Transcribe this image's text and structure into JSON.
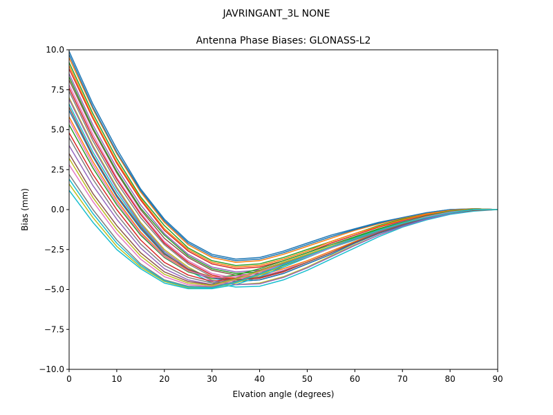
{
  "figure": {
    "suptitle": "JAVRINGANT_3L   NONE"
  },
  "chart_data": {
    "type": "line",
    "title": "Antenna Phase Biases: GLONASS-L2",
    "xlabel": "Elvation angle (degrees)",
    "ylabel": "Bias (mm)",
    "xlim": [
      0,
      90
    ],
    "ylim": [
      -10,
      10
    ],
    "xticks": [
      0,
      10,
      20,
      30,
      40,
      50,
      60,
      70,
      80,
      90
    ],
    "xtick_labels": [
      "0",
      "10",
      "20",
      "30",
      "40",
      "50",
      "60",
      "70",
      "80",
      "90"
    ],
    "yticks": [
      -10,
      -7.5,
      -5,
      -2.5,
      0,
      2.5,
      5,
      7.5,
      10
    ],
    "ytick_labels": [
      "−10.0",
      "−7.5",
      "−5.0",
      "−2.5",
      "0.0",
      "2.5",
      "5.0",
      "7.5",
      "10.0"
    ],
    "grid": false,
    "legend": "none",
    "colors": [
      "#1f77b4",
      "#ff7f0e",
      "#2ca02c",
      "#d62728",
      "#9467bd",
      "#8c564b",
      "#e377c2",
      "#7f7f7f",
      "#bcbd22",
      "#17becf"
    ],
    "x": [
      0,
      5,
      10,
      15,
      20,
      25,
      30,
      35,
      40,
      45,
      50,
      55,
      60,
      65,
      70,
      75,
      80,
      85,
      90
    ],
    "series": [
      {
        "values": [
          9.9,
          6.6,
          3.8,
          1.3,
          -0.6,
          -2.0,
          -2.8,
          -3.1,
          -3.0,
          -2.6,
          -2.1,
          -1.6,
          -1.2,
          -0.8,
          -0.5,
          -0.2,
          0.0,
          0.05,
          0.0
        ]
      },
      {
        "values": [
          9.5,
          6.3,
          3.5,
          1.1,
          -0.8,
          -2.2,
          -3.0,
          -3.3,
          -3.2,
          -2.8,
          -2.3,
          -1.8,
          -1.3,
          -0.9,
          -0.55,
          -0.25,
          -0.05,
          0.05,
          0.0
        ]
      },
      {
        "values": [
          9.2,
          6.0,
          3.2,
          0.8,
          -1.0,
          -2.4,
          -3.2,
          -3.5,
          -3.4,
          -3.0,
          -2.5,
          -2.0,
          -1.5,
          -1.0,
          -0.6,
          -0.3,
          -0.05,
          0.05,
          0.0
        ]
      },
      {
        "values": [
          8.8,
          5.7,
          2.9,
          0.6,
          -1.3,
          -2.6,
          -3.4,
          -3.7,
          -3.6,
          -3.2,
          -2.7,
          -2.1,
          -1.6,
          -1.1,
          -0.7,
          -0.35,
          -0.1,
          0.05,
          0.0
        ]
      },
      {
        "values": [
          8.5,
          5.3,
          2.6,
          0.3,
          -1.5,
          -2.8,
          -3.6,
          -3.9,
          -3.8,
          -3.4,
          -2.9,
          -2.3,
          -1.7,
          -1.2,
          -0.75,
          -0.4,
          -0.1,
          0.05,
          0.0
        ]
      },
      {
        "values": [
          8.1,
          5.0,
          2.3,
          0.0,
          -1.8,
          -3.0,
          -3.8,
          -4.1,
          -4.0,
          -3.6,
          -3.0,
          -2.4,
          -1.8,
          -1.3,
          -0.8,
          -0.45,
          -0.15,
          0.03,
          0.0
        ]
      },
      {
        "values": [
          7.8,
          4.7,
          2.0,
          -0.2,
          -2.0,
          -3.2,
          -4.0,
          -4.3,
          -4.2,
          -3.8,
          -3.2,
          -2.6,
          -2.0,
          -1.4,
          -0.9,
          -0.5,
          -0.2,
          0.0,
          0.0
        ]
      },
      {
        "values": [
          7.4,
          4.3,
          1.7,
          -0.5,
          -2.2,
          -3.4,
          -4.2,
          -4.5,
          -4.4,
          -4.0,
          -3.4,
          -2.8,
          -2.1,
          -1.5,
          -1.0,
          -0.55,
          -0.2,
          0.0,
          0.0
        ]
      },
      {
        "values": [
          7.0,
          4.0,
          1.4,
          -0.8,
          -2.5,
          -3.6,
          -4.4,
          -4.7,
          -4.6,
          -4.2,
          -3.6,
          -2.9,
          -2.2,
          -1.6,
          -1.05,
          -0.6,
          -0.25,
          -0.05,
          0.0
        ]
      },
      {
        "values": [
          6.6,
          3.6,
          1.1,
          -1.0,
          -2.7,
          -3.8,
          -4.6,
          -4.85,
          -4.8,
          -4.4,
          -3.8,
          -3.1,
          -2.4,
          -1.7,
          -1.1,
          -0.65,
          -0.3,
          -0.1,
          0.0
        ]
      },
      {
        "values": [
          6.2,
          3.3,
          0.8,
          -1.2,
          -2.8,
          -3.7,
          -4.3,
          -4.5,
          -4.4,
          -4.0,
          -3.4,
          -2.8,
          -2.1,
          -1.5,
          -1.0,
          -0.55,
          -0.2,
          -0.05,
          0.0
        ]
      },
      {
        "values": [
          5.8,
          3.0,
          0.6,
          -1.4,
          -2.9,
          -3.8,
          -4.2,
          -4.3,
          -4.1,
          -3.7,
          -3.2,
          -2.6,
          -2.0,
          -1.4,
          -0.9,
          -0.5,
          -0.2,
          -0.05,
          0.0
        ]
      },
      {
        "values": [
          5.3,
          2.6,
          0.3,
          -1.6,
          -3.0,
          -3.9,
          -4.3,
          -4.1,
          -3.7,
          -3.2,
          -2.7,
          -2.2,
          -1.7,
          -1.2,
          -0.8,
          -0.45,
          -0.15,
          0.0,
          0.0
        ]
      },
      {
        "values": [
          4.8,
          2.2,
          0.0,
          -1.9,
          -3.3,
          -4.1,
          -4.5,
          -4.3,
          -3.8,
          -3.3,
          -2.8,
          -2.3,
          -1.8,
          -1.3,
          -0.85,
          -0.5,
          -0.2,
          0.0,
          0.0
        ]
      },
      {
        "values": [
          4.0,
          1.5,
          -0.6,
          -2.4,
          -3.7,
          -4.4,
          -4.7,
          -4.4,
          -3.9,
          -3.4,
          -2.9,
          -2.4,
          -1.9,
          -1.4,
          -0.9,
          -0.5,
          -0.2,
          -0.05,
          0.0
        ]
      },
      {
        "values": [
          3.5,
          1.0,
          -1.0,
          -2.7,
          -3.9,
          -4.5,
          -4.7,
          -4.3,
          -3.8,
          -3.3,
          -2.8,
          -2.3,
          -1.8,
          -1.3,
          -0.85,
          -0.5,
          -0.2,
          0.0,
          0.0
        ]
      },
      {
        "values": [
          2.8,
          0.5,
          -1.5,
          -3.1,
          -4.2,
          -4.7,
          -4.8,
          -4.4,
          -3.9,
          -3.3,
          -2.8,
          -2.3,
          -1.8,
          -1.3,
          -0.85,
          -0.5,
          -0.2,
          0.0,
          0.0
        ]
      },
      {
        "values": [
          2.2,
          0.0,
          -1.9,
          -3.4,
          -4.4,
          -4.8,
          -4.85,
          -4.5,
          -4.0,
          -3.4,
          -2.9,
          -2.3,
          -1.8,
          -1.3,
          -0.85,
          -0.5,
          -0.2,
          0.0,
          0.0
        ]
      },
      {
        "values": [
          1.6,
          -0.5,
          -2.3,
          -3.6,
          -4.5,
          -4.9,
          -4.9,
          -4.6,
          -4.1,
          -3.5,
          -2.9,
          -2.4,
          -1.8,
          -1.3,
          -0.85,
          -0.5,
          -0.2,
          0.0,
          0.0
        ]
      },
      {
        "values": [
          1.2,
          -0.8,
          -2.5,
          -3.7,
          -4.6,
          -4.95,
          -4.95,
          -4.7,
          -4.2,
          -3.6,
          -3.0,
          -2.4,
          -1.9,
          -1.35,
          -0.9,
          -0.5,
          -0.2,
          0.0,
          0.0
        ]
      },
      {
        "values": [
          9.7,
          6.4,
          3.6,
          1.2,
          -0.7,
          -2.1,
          -2.9,
          -3.2,
          -3.1,
          -2.7,
          -2.2,
          -1.7,
          -1.25,
          -0.85,
          -0.5,
          -0.2,
          0.0,
          0.05,
          0.0
        ]
      },
      {
        "values": [
          9.0,
          5.8,
          3.0,
          0.7,
          -1.2,
          -2.5,
          -3.3,
          -3.6,
          -3.5,
          -3.1,
          -2.6,
          -2.0,
          -1.5,
          -1.05,
          -0.65,
          -0.3,
          -0.05,
          0.05,
          0.0
        ]
      },
      {
        "values": [
          8.3,
          5.1,
          2.4,
          0.1,
          -1.6,
          -2.9,
          -3.7,
          -4.0,
          -3.9,
          -3.5,
          -2.95,
          -2.35,
          -1.75,
          -1.25,
          -0.8,
          -0.4,
          -0.1,
          0.03,
          0.0
        ]
      },
      {
        "values": [
          7.6,
          4.5,
          1.9,
          -0.3,
          -2.1,
          -3.3,
          -4.1,
          -4.4,
          -4.3,
          -3.9,
          -3.3,
          -2.7,
          -2.05,
          -1.45,
          -0.95,
          -0.5,
          -0.2,
          0.0,
          0.0
        ]
      },
      {
        "values": [
          6.9,
          3.9,
          1.3,
          -0.9,
          -2.6,
          -3.7,
          -4.45,
          -4.7,
          -4.65,
          -4.25,
          -3.65,
          -2.95,
          -2.25,
          -1.6,
          -1.05,
          -0.6,
          -0.25,
          -0.05,
          0.0
        ]
      },
      {
        "values": [
          6.4,
          3.4,
          0.9,
          -1.1,
          -2.75,
          -3.75,
          -4.25,
          -4.4,
          -4.25,
          -3.85,
          -3.3,
          -2.7,
          -2.05,
          -1.45,
          -0.95,
          -0.5,
          -0.2,
          -0.05,
          0.0
        ]
      },
      {
        "values": [
          5.6,
          2.8,
          0.45,
          -1.5,
          -2.95,
          -3.85,
          -4.25,
          -4.2,
          -3.9,
          -3.45,
          -2.95,
          -2.4,
          -1.85,
          -1.3,
          -0.85,
          -0.45,
          -0.15,
          0.0,
          0.0
        ]
      },
      {
        "values": [
          4.5,
          1.9,
          -0.3,
          -2.15,
          -3.5,
          -4.25,
          -4.6,
          -4.35,
          -3.85,
          -3.35,
          -2.85,
          -2.35,
          -1.85,
          -1.35,
          -0.88,
          -0.5,
          -0.2,
          0.0,
          0.0
        ]
      },
      {
        "values": [
          3.2,
          0.75,
          -1.25,
          -2.9,
          -4.05,
          -4.6,
          -4.75,
          -4.35,
          -3.85,
          -3.3,
          -2.8,
          -2.3,
          -1.8,
          -1.3,
          -0.85,
          -0.5,
          -0.2,
          0.0,
          0.0
        ]
      },
      {
        "values": [
          1.9,
          -0.25,
          -2.1,
          -3.5,
          -4.45,
          -4.85,
          -4.9,
          -4.55,
          -4.05,
          -3.45,
          -2.9,
          -2.35,
          -1.8,
          -1.3,
          -0.85,
          -0.5,
          -0.2,
          0.0,
          0.0
        ]
      }
    ]
  }
}
